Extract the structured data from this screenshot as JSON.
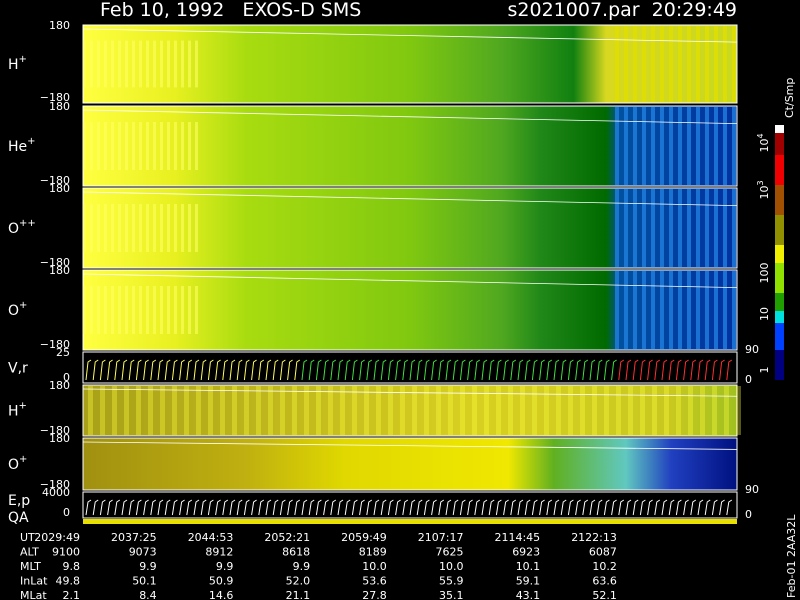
{
  "header": {
    "left": "Feb 10, 1992   EXOS-D SMS",
    "right": "s2021007.par  20:29:49"
  },
  "panels": [
    {
      "label": "H",
      "charge": "+",
      "top": "180",
      "bottom": "−180"
    },
    {
      "label": "He",
      "charge": "+",
      "top": "180",
      "bottom": "−180"
    },
    {
      "label": "O",
      "charge": "++",
      "top": "180",
      "bottom": "−180"
    },
    {
      "label": "O",
      "charge": "+",
      "top": "180",
      "bottom": "−180"
    },
    {
      "label": "V,r",
      "top": "25",
      "bottom": "0",
      "right_top": "90",
      "right_bottom": "0"
    },
    {
      "label": "H",
      "charge": "+",
      "top": "180",
      "bottom": "−180"
    },
    {
      "label": "O",
      "charge": "+",
      "top": "180",
      "bottom": "−180"
    },
    {
      "label": "E,p",
      "label2": "QA",
      "top": "4000",
      "bottom": "0",
      "right_top": "90",
      "right_bottom": "0"
    }
  ],
  "colorbar": {
    "unit": "Ct/Smp",
    "labels": [
      {
        "base": "10",
        "exp": "4"
      },
      {
        "base": "10",
        "exp": "3"
      },
      {
        "base": "100"
      },
      {
        "base": "10"
      },
      {
        "base": "1"
      }
    ]
  },
  "footer_code": "Feb-01 2AA32L",
  "ephemeris": [
    {
      "name": "UT",
      "values": [
        "2029:49",
        "2037:25",
        "2044:53",
        "2052:21",
        "2059:49",
        "2107:17",
        "2114:45",
        "2122:13"
      ]
    },
    {
      "name": "ALT",
      "values": [
        "9100",
        "9073",
        "8912",
        "8618",
        "8189",
        "7625",
        "6923",
        "6087"
      ]
    },
    {
      "name": "MLT",
      "values": [
        "9.8",
        "9.9",
        "9.9",
        "9.9",
        "10.0",
        "10.0",
        "10.1",
        "10.2"
      ]
    },
    {
      "name": "InLat",
      "values": [
        "49.8",
        "50.1",
        "50.9",
        "52.0",
        "53.6",
        "55.9",
        "59.1",
        "63.6"
      ]
    },
    {
      "name": "MLat",
      "values": [
        "2.1",
        "8.4",
        "14.6",
        "21.1",
        "27.8",
        "35.1",
        "43.1",
        "52.1"
      ]
    }
  ]
}
